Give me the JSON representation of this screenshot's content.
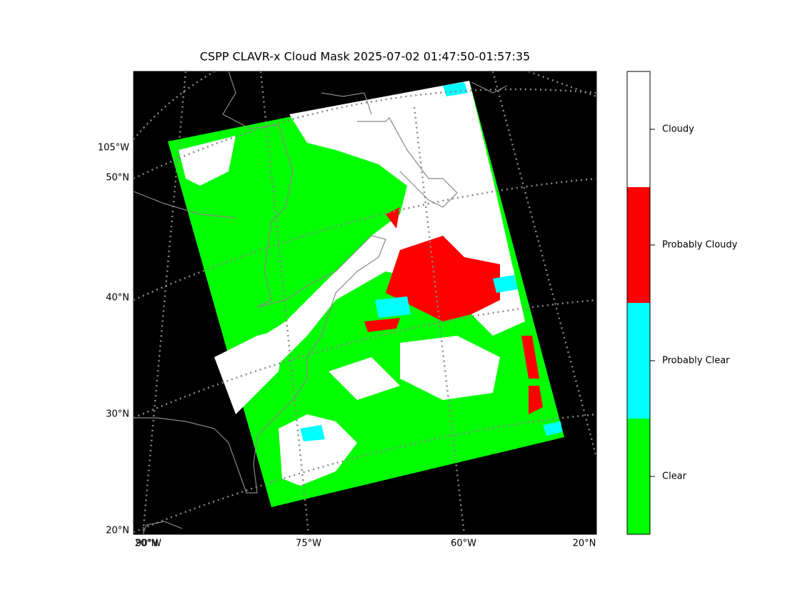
{
  "title": "CSPP CLAVR-x Cloud Mask 2025-07-02 01:47:50-01:57:35",
  "map": {
    "left_labels": [
      "105°W",
      "50°N",
      "40°N",
      "30°N",
      "20°N"
    ],
    "bottom_labels": [
      "20°N",
      "90°W",
      "75°W",
      "60°W",
      "20°N"
    ]
  },
  "legend": {
    "entries": [
      {
        "label": "Cloudy",
        "color": "#ffffff"
      },
      {
        "label": "Probably Cloudy",
        "color": "#ff0000"
      },
      {
        "label": "Probably Clear",
        "color": "#00ffff"
      },
      {
        "label": "Clear",
        "color": "#00ff00"
      }
    ]
  }
}
